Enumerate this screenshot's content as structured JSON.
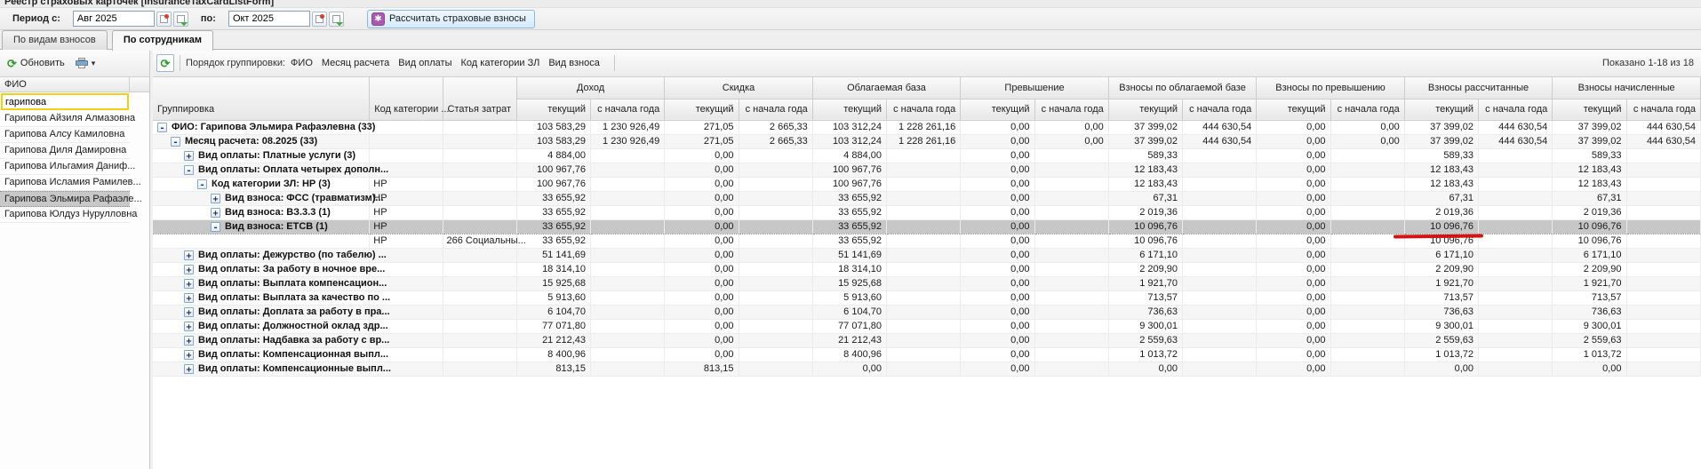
{
  "window": {
    "title": "Реестр страховых карточек [InsuranceTaxCardListForm]"
  },
  "period_bar": {
    "label_from": "Период с:",
    "from_value": "Авг 2025",
    "label_to": "по:",
    "to_value": "Окт 2025",
    "calc_button_label": "Рассчитать страховые взносы"
  },
  "icons": {
    "refresh_glyph": "⟳",
    "dropdown_glyph": "▾",
    "calc_glyph": "✱",
    "expand_plus": "+",
    "expand_minus": "-"
  },
  "tabs": [
    {
      "label": "По видам взносов",
      "active": false
    },
    {
      "label": "По сотрудникам",
      "active": true
    }
  ],
  "sidebar": {
    "refresh_label": "Обновить",
    "column_header": "ФИО",
    "filter_value": "гарипова",
    "items": [
      {
        "label": "Гарипова Айзиля Алмазовна",
        "selected": false
      },
      {
        "label": "Гарипова Алсу Камиловна",
        "selected": false
      },
      {
        "label": "Гарипова Диля Дамировна",
        "selected": false
      },
      {
        "label": "Гарипова Ильгамия Даниф...",
        "selected": false
      },
      {
        "label": "Гарипова Исламия Рамилев...",
        "selected": false
      },
      {
        "label": "Гарипова Эльмира Рафаэле...",
        "selected": true
      },
      {
        "label": "Гарипова Юлдуз Нурулловна",
        "selected": false
      }
    ]
  },
  "main": {
    "toolbar": {
      "grouping_label": "Порядок группировки:",
      "grouping_fields": [
        "ФИО",
        "Месяц расчета",
        "Вид оплаты",
        "Код категории ЗЛ",
        "Вид взноса"
      ],
      "records_info": "Показано 1-18 из 18"
    },
    "table": {
      "left_columns": [
        "Группировка",
        "Код категории ...",
        "Статья затрат"
      ],
      "column_groups": [
        "Доход",
        "Скидка",
        "Облагаемая база",
        "Превышение",
        "Взносы по облагаемой базе",
        "Взносы по превышению",
        "Взносы рассчитанные",
        "Взносы начисленные"
      ],
      "sub_columns": [
        "текущий",
        "с начала года"
      ],
      "rows": [
        {
          "level": 0,
          "icon": "minus",
          "label": "ФИО: Гарипова Эльмира Рафаэлевна (33)",
          "kod": "",
          "statya": "",
          "selected": false,
          "bold": true,
          "values": [
            "103 583,29",
            "1 230 926,49",
            "271,05",
            "2 665,33",
            "103 312,24",
            "1 228 261,16",
            "0,00",
            "0,00",
            "37 399,02",
            "444 630,54",
            "0,00",
            "0,00",
            "37 399,02",
            "444 630,54",
            "37 399,02",
            "444 630,54"
          ]
        },
        {
          "level": 1,
          "icon": "minus",
          "label": "Месяц расчета: 08.2025 (33)",
          "kod": "",
          "statya": "",
          "selected": false,
          "bold": true,
          "values": [
            "103 583,29",
            "1 230 926,49",
            "271,05",
            "2 665,33",
            "103 312,24",
            "1 228 261,16",
            "0,00",
            "0,00",
            "37 399,02",
            "444 630,54",
            "0,00",
            "0,00",
            "37 399,02",
            "444 630,54",
            "37 399,02",
            "444 630,54"
          ]
        },
        {
          "level": 2,
          "icon": "plus",
          "label": "Вид оплаты: Платные услуги (3)",
          "kod": "",
          "statya": "",
          "selected": false,
          "bold": true,
          "values": [
            "4 884,00",
            "",
            "0,00",
            "",
            "4 884,00",
            "",
            "0,00",
            "",
            "589,33",
            "",
            "0,00",
            "",
            "589,33",
            "",
            "589,33",
            ""
          ]
        },
        {
          "level": 2,
          "icon": "minus",
          "label": "Вид оплаты: Оплата четырех дополн...",
          "kod": "",
          "statya": "",
          "selected": false,
          "bold": true,
          "values": [
            "100 967,76",
            "",
            "0,00",
            "",
            "100 967,76",
            "",
            "0,00",
            "",
            "12 183,43",
            "",
            "0,00",
            "",
            "12 183,43",
            "",
            "12 183,43",
            ""
          ]
        },
        {
          "level": 3,
          "icon": "minus",
          "label": "Код категории ЗЛ: НР (3)",
          "kod": "НР",
          "statya": "",
          "selected": false,
          "bold": true,
          "values": [
            "100 967,76",
            "",
            "0,00",
            "",
            "100 967,76",
            "",
            "0,00",
            "",
            "12 183,43",
            "",
            "0,00",
            "",
            "12 183,43",
            "",
            "12 183,43",
            ""
          ]
        },
        {
          "level": 4,
          "icon": "plus",
          "label": "Вид взноса: ФСС (травматизм)...",
          "kod": "НР",
          "statya": "",
          "selected": false,
          "bold": true,
          "values": [
            "33 655,92",
            "",
            "0,00",
            "",
            "33 655,92",
            "",
            "0,00",
            "",
            "67,31",
            "",
            "0,00",
            "",
            "67,31",
            "",
            "67,31",
            ""
          ]
        },
        {
          "level": 4,
          "icon": "plus",
          "label": "Вид взноса: ВЗ.3.3 (1)",
          "kod": "НР",
          "statya": "",
          "selected": false,
          "bold": true,
          "values": [
            "33 655,92",
            "",
            "0,00",
            "",
            "33 655,92",
            "",
            "0,00",
            "",
            "2 019,36",
            "",
            "0,00",
            "",
            "2 019,36",
            "",
            "2 019,36",
            ""
          ]
        },
        {
          "level": 4,
          "icon": "minus",
          "label": "Вид взноса: ЕТСВ (1)",
          "kod": "НР",
          "statya": "",
          "selected": true,
          "bold": true,
          "values": [
            "33 655,92",
            "",
            "0,00",
            "",
            "33 655,92",
            "",
            "0,00",
            "",
            "10 096,76",
            "",
            "0,00",
            "",
            "10 096,76",
            "",
            "10 096,76",
            ""
          ]
        },
        {
          "level": 5,
          "icon": "none",
          "label": "",
          "kod": "НР",
          "statya": "266 Социальны...",
          "selected": false,
          "bold": false,
          "values": [
            "33 655,92",
            "",
            "0,00",
            "",
            "33 655,92",
            "",
            "0,00",
            "",
            "10 096,76",
            "",
            "0,00",
            "",
            "10 096,76",
            "",
            "10 096,76",
            ""
          ]
        },
        {
          "level": 2,
          "icon": "plus",
          "label": "Вид оплаты: Дежурство (по табелю) ...",
          "kod": "",
          "statya": "",
          "selected": false,
          "bold": true,
          "values": [
            "51 141,69",
            "",
            "0,00",
            "",
            "51 141,69",
            "",
            "0,00",
            "",
            "6 171,10",
            "",
            "0,00",
            "",
            "6 171,10",
            "",
            "6 171,10",
            ""
          ]
        },
        {
          "level": 2,
          "icon": "plus",
          "label": "Вид оплаты: За работу в ночное вре...",
          "kod": "",
          "statya": "",
          "selected": false,
          "bold": true,
          "values": [
            "18 314,10",
            "",
            "0,00",
            "",
            "18 314,10",
            "",
            "0,00",
            "",
            "2 209,90",
            "",
            "0,00",
            "",
            "2 209,90",
            "",
            "2 209,90",
            ""
          ]
        },
        {
          "level": 2,
          "icon": "plus",
          "label": "Вид оплаты: Выплата компенсацион...",
          "kod": "",
          "statya": "",
          "selected": false,
          "bold": true,
          "values": [
            "15 925,68",
            "",
            "0,00",
            "",
            "15 925,68",
            "",
            "0,00",
            "",
            "1 921,70",
            "",
            "0,00",
            "",
            "1 921,70",
            "",
            "1 921,70",
            ""
          ]
        },
        {
          "level": 2,
          "icon": "plus",
          "label": "Вид оплаты: Выплата за качество по ...",
          "kod": "",
          "statya": "",
          "selected": false,
          "bold": true,
          "values": [
            "5 913,60",
            "",
            "0,00",
            "",
            "5 913,60",
            "",
            "0,00",
            "",
            "713,57",
            "",
            "0,00",
            "",
            "713,57",
            "",
            "713,57",
            ""
          ]
        },
        {
          "level": 2,
          "icon": "plus",
          "label": "Вид оплаты: Доплата за работу в пра...",
          "kod": "",
          "statya": "",
          "selected": false,
          "bold": true,
          "values": [
            "6 104,70",
            "",
            "0,00",
            "",
            "6 104,70",
            "",
            "0,00",
            "",
            "736,63",
            "",
            "0,00",
            "",
            "736,63",
            "",
            "736,63",
            ""
          ]
        },
        {
          "level": 2,
          "icon": "plus",
          "label": "Вид оплаты: Должностной оклад здр...",
          "kod": "",
          "statya": "",
          "selected": false,
          "bold": true,
          "values": [
            "77 071,80",
            "",
            "0,00",
            "",
            "77 071,80",
            "",
            "0,00",
            "",
            "9 300,01",
            "",
            "0,00",
            "",
            "9 300,01",
            "",
            "9 300,01",
            ""
          ]
        },
        {
          "level": 2,
          "icon": "plus",
          "label": "Вид оплаты: Надбавка за работу с вр...",
          "kod": "",
          "statya": "",
          "selected": false,
          "bold": true,
          "values": [
            "21 212,43",
            "",
            "0,00",
            "",
            "21 212,43",
            "",
            "0,00",
            "",
            "2 559,63",
            "",
            "0,00",
            "",
            "2 559,63",
            "",
            "2 559,63",
            ""
          ]
        },
        {
          "level": 2,
          "icon": "plus",
          "label": "Вид оплаты: Компенсационная выпл...",
          "kod": "",
          "statya": "",
          "selected": false,
          "bold": true,
          "values": [
            "8 400,96",
            "",
            "0,00",
            "",
            "8 400,96",
            "",
            "0,00",
            "",
            "1 013,72",
            "",
            "0,00",
            "",
            "1 013,72",
            "",
            "1 013,72",
            ""
          ]
        },
        {
          "level": 2,
          "icon": "plus",
          "label": "Вид оплаты: Компенсационные выпл...",
          "kod": "",
          "statya": "",
          "selected": false,
          "bold": true,
          "values": [
            "813,15",
            "",
            "813,15",
            "",
            "0,00",
            "",
            "0,00",
            "",
            "0,00",
            "",
            "0,00",
            "",
            "0,00",
            "",
            "0,00",
            ""
          ]
        }
      ]
    },
    "annotation_color": "#d41414"
  }
}
